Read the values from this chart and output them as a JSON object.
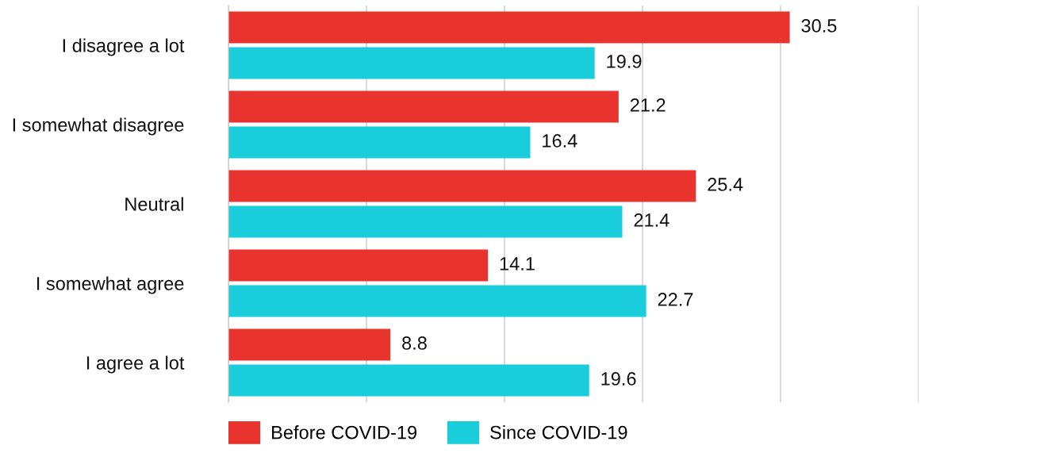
{
  "chart_data": {
    "type": "bar",
    "orientation": "horizontal",
    "categories": [
      "I disagree a lot",
      "I somewhat disagree",
      "Neutral",
      "I somewhat agree",
      "I agree a lot"
    ],
    "series": [
      {
        "name": "Before COVID-19",
        "color": "#e8332e",
        "values": [
          30.5,
          21.2,
          25.4,
          14.1,
          8.8
        ]
      },
      {
        "name": "Since COVID-19",
        "color": "#19ceda",
        "values": [
          19.9,
          16.4,
          21.4,
          22.7,
          19.6
        ]
      }
    ],
    "xlim": [
      0,
      37.5
    ],
    "xticks": [
      {
        "value": 0,
        "label": null
      },
      {
        "value": 7.5,
        "label": null
      },
      {
        "value": 15,
        "label": null
      },
      {
        "value": 22.5,
        "label": null
      },
      {
        "value": 30,
        "label": null
      },
      {
        "value": 37.5,
        "label": null
      }
    ],
    "grid": "x",
    "legend": "bottom",
    "data_labels": true,
    "tick_labels": "y"
  }
}
